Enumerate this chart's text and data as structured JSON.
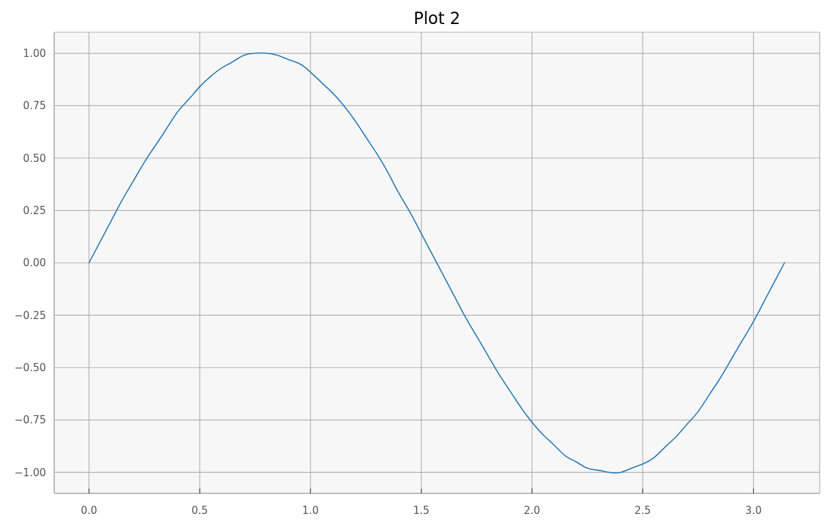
{
  "chart_data": {
    "type": "line",
    "title": "Plot 2",
    "x": [
      0,
      0.05,
      0.1,
      0.15,
      0.2,
      0.25,
      0.3,
      0.35,
      0.4,
      0.45,
      0.5,
      0.55,
      0.6,
      0.65,
      0.7,
      0.75,
      0.8,
      0.85,
      0.9,
      0.95,
      1.0,
      1.05,
      1.1,
      1.15,
      1.2,
      1.25,
      1.3,
      1.35,
      1.4,
      1.45,
      1.5,
      1.55,
      1.6,
      1.65,
      1.7,
      1.75,
      1.8,
      1.85,
      1.9,
      1.95,
      2.0,
      2.05,
      2.1,
      2.15,
      2.2,
      2.25,
      2.3,
      2.35,
      2.4,
      2.45,
      2.5,
      2.55,
      2.6,
      2.65,
      2.7,
      2.75,
      2.8,
      2.85,
      2.9,
      2.95,
      3.0,
      3.05,
      3.1,
      3.14
    ],
    "series": [
      {
        "color": "#1f77b4",
        "values": [
          0,
          0.1,
          0.2,
          0.3,
          0.39,
          0.48,
          0.56,
          0.64,
          0.72,
          0.78,
          0.84,
          0.89,
          0.93,
          0.96,
          0.99,
          1.0,
          1.0,
          0.99,
          0.97,
          0.95,
          0.91,
          0.86,
          0.81,
          0.75,
          0.68,
          0.6,
          0.52,
          0.43,
          0.33,
          0.24,
          0.14,
          0.04,
          -0.06,
          -0.16,
          -0.26,
          -0.35,
          -0.44,
          -0.53,
          -0.61,
          -0.69,
          -0.76,
          -0.82,
          -0.87,
          -0.92,
          -0.95,
          -0.98,
          -0.99,
          -1.0,
          -1.0,
          -0.98,
          -0.96,
          -0.93,
          -0.88,
          -0.83,
          -0.77,
          -0.71,
          -0.63,
          -0.55,
          -0.46,
          -0.37,
          -0.28,
          -0.18,
          -0.08,
          0
        ]
      }
    ],
    "xlim": [
      -0.157,
      3.299
    ],
    "ylim": [
      -1.1,
      1.1
    ],
    "xticks": [
      {
        "value": 0,
        "label": "0.0"
      },
      {
        "value": 0.5,
        "label": "0.5"
      },
      {
        "value": 1,
        "label": "1.0"
      },
      {
        "value": 1.5,
        "label": "1.5"
      },
      {
        "value": 2,
        "label": "2.0"
      },
      {
        "value": 2.5,
        "label": "2.5"
      },
      {
        "value": 3,
        "label": "3.0"
      }
    ],
    "yticks": [
      {
        "value": -1,
        "label": "−1.00"
      },
      {
        "value": -0.75,
        "label": "−0.75"
      },
      {
        "value": -0.5,
        "label": "−0.50"
      },
      {
        "value": -0.25,
        "label": "−0.25"
      },
      {
        "value": 0,
        "label": "0.00"
      },
      {
        "value": 0.25,
        "label": "0.25"
      },
      {
        "value": 0.5,
        "label": "0.50"
      },
      {
        "value": 0.75,
        "label": "0.75"
      },
      {
        "value": 1,
        "label": "1.00"
      }
    ],
    "grid": true,
    "line_style": "solid"
  }
}
